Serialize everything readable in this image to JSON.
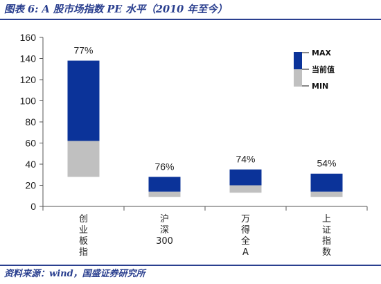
{
  "figure": {
    "title": "图表 6:  A 股市场指数 PE 水平（2010 年至今）",
    "source": "资料来源：wind，国盛证券研究所"
  },
  "legend": {
    "max_label": "MAX",
    "current_label": "当前值",
    "min_label": "MIN"
  },
  "colors": {
    "upper": "#0b3399",
    "lower": "#c0c0c0",
    "axis": "#555555",
    "text": "#222222"
  },
  "chart_data": {
    "type": "bar",
    "subtype": "floating-range (min / current / max)",
    "categories": [
      "创业板指",
      "沪深300",
      "万得全A",
      "上证指数"
    ],
    "series": [
      {
        "name": "MIN",
        "values": [
          28,
          9,
          13,
          9
        ]
      },
      {
        "name": "当前值",
        "values": [
          62,
          14,
          20,
          14
        ]
      },
      {
        "name": "MAX",
        "values": [
          138,
          28,
          35,
          31
        ]
      }
    ],
    "data_labels": [
      "77%",
      "76%",
      "74%",
      "54%"
    ],
    "ylim": [
      0,
      160
    ],
    "yticks": [
      0,
      20,
      40,
      60,
      80,
      100,
      120,
      140,
      160
    ],
    "xlabel": "",
    "ylabel": "",
    "grid": false,
    "legend_position": "top-right"
  }
}
